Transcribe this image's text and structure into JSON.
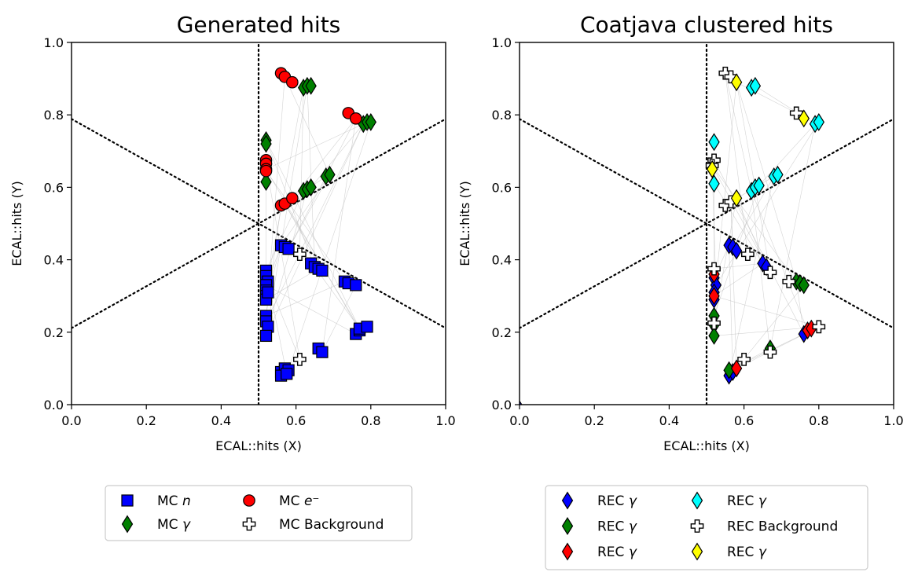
{
  "chart_data": [
    {
      "type": "scatter",
      "title": "Generated hits",
      "xlabel": "ECAL::hits (X)",
      "ylabel": "ECAL::hits (Y)",
      "xlim": [
        0,
        1
      ],
      "ylim": [
        0,
        1
      ],
      "xticks": [
        "0.0",
        "0.2",
        "0.4",
        "0.6",
        "0.8",
        "1.0"
      ],
      "yticks": [
        "0.0",
        "0.2",
        "0.4",
        "0.6",
        "0.8",
        "1.0"
      ],
      "grid": false,
      "legend": {
        "placement": "below",
        "columns": 2,
        "entries": [
          {
            "label": "MC n",
            "italic": "n",
            "prefix": "MC ",
            "marker": "square",
            "color": "#0000ff"
          },
          {
            "label": "MC γ",
            "italic": "γ",
            "prefix": "MC ",
            "marker": "diamond",
            "color": "#008000"
          },
          {
            "label": "MC e⁻",
            "italic": "e⁻",
            "prefix": "MC ",
            "marker": "circle",
            "color": "#ff0000"
          },
          {
            "label": "MC Background",
            "italic": "",
            "prefix": "MC Background",
            "marker": "plus",
            "color": "#ffffff"
          }
        ]
      },
      "series": [
        {
          "name": "MC n",
          "marker": "square",
          "color": "#0000ff",
          "points": [
            [
              0.56,
              0.44
            ],
            [
              0.57,
              0.435
            ],
            [
              0.58,
              0.43
            ],
            [
              0.52,
              0.37
            ],
            [
              0.52,
              0.355
            ],
            [
              0.525,
              0.34
            ],
            [
              0.52,
              0.33
            ],
            [
              0.52,
              0.315
            ],
            [
              0.52,
              0.3
            ],
            [
              0.52,
              0.29
            ],
            [
              0.525,
              0.31
            ],
            [
              0.64,
              0.39
            ],
            [
              0.65,
              0.38
            ],
            [
              0.66,
              0.375
            ],
            [
              0.67,
              0.37
            ],
            [
              0.73,
              0.34
            ],
            [
              0.74,
              0.335
            ],
            [
              0.76,
              0.33
            ],
            [
              0.52,
              0.245
            ],
            [
              0.52,
              0.23
            ],
            [
              0.525,
              0.215
            ],
            [
              0.52,
              0.19
            ],
            [
              0.76,
              0.195
            ],
            [
              0.77,
              0.205
            ],
            [
              0.77,
              0.21
            ],
            [
              0.79,
              0.215
            ],
            [
              0.66,
              0.155
            ],
            [
              0.67,
              0.145
            ],
            [
              0.56,
              0.09
            ],
            [
              0.57,
              0.1
            ],
            [
              0.58,
              0.095
            ],
            [
              0.56,
              0.08
            ],
            [
              0.575,
              0.085
            ]
          ]
        },
        {
          "name": "MC γ",
          "marker": "diamond",
          "color": "#008000",
          "points": [
            [
              0.62,
              0.875
            ],
            [
              0.63,
              0.88
            ],
            [
              0.64,
              0.88
            ],
            [
              0.78,
              0.775
            ],
            [
              0.79,
              0.78
            ],
            [
              0.8,
              0.78
            ],
            [
              0.52,
              0.73
            ],
            [
              0.52,
              0.72
            ],
            [
              0.68,
              0.63
            ],
            [
              0.69,
              0.635
            ],
            [
              0.52,
              0.615
            ],
            [
              0.62,
              0.59
            ],
            [
              0.63,
              0.595
            ],
            [
              0.64,
              0.6
            ]
          ]
        },
        {
          "name": "MC e⁻",
          "marker": "circle",
          "color": "#ff0000",
          "points": [
            [
              0.56,
              0.915
            ],
            [
              0.57,
              0.905
            ],
            [
              0.59,
              0.89
            ],
            [
              0.74,
              0.805
            ],
            [
              0.76,
              0.79
            ],
            [
              0.52,
              0.675
            ],
            [
              0.52,
              0.665
            ],
            [
              0.52,
              0.65
            ],
            [
              0.52,
              0.645
            ],
            [
              0.56,
              0.55
            ],
            [
              0.57,
              0.555
            ],
            [
              0.59,
              0.57
            ]
          ]
        },
        {
          "name": "MC Background",
          "marker": "plus",
          "color": "#ffffff",
          "points": [
            [
              0.61,
              0.415
            ],
            [
              0.61,
              0.125
            ]
          ]
        }
      ]
    },
    {
      "type": "scatter",
      "title": "Coatjava clustered hits",
      "xlabel": "ECAL::hits (X)",
      "ylabel": "ECAL::hits (Y)",
      "xlim": [
        0,
        1
      ],
      "ylim": [
        0,
        1
      ],
      "xticks": [
        "0.0",
        "0.2",
        "0.4",
        "0.6",
        "0.8",
        "1.0"
      ],
      "yticks": [
        "0.0",
        "0.2",
        "0.4",
        "0.6",
        "0.8",
        "1.0"
      ],
      "grid": false,
      "legend": {
        "placement": "below",
        "columns": 2,
        "entries": [
          {
            "label": "REC γ",
            "italic": "γ",
            "prefix": "REC ",
            "marker": "diamond",
            "color": "#0000ff"
          },
          {
            "label": "REC γ",
            "italic": "γ",
            "prefix": "REC ",
            "marker": "diamond",
            "color": "#008000"
          },
          {
            "label": "REC γ",
            "italic": "γ",
            "prefix": "REC ",
            "marker": "diamond",
            "color": "#ff0000"
          },
          {
            "label": "REC γ",
            "italic": "γ",
            "prefix": "REC ",
            "marker": "diamond",
            "color": "#00ffff"
          },
          {
            "label": "REC Background",
            "italic": "",
            "prefix": "REC Background",
            "marker": "plus",
            "color": "#ffffff"
          },
          {
            "label": "REC γ",
            "italic": "γ",
            "prefix": "REC ",
            "marker": "diamond",
            "color": "#ffff00"
          }
        ]
      },
      "series": [
        {
          "name": "REC γ (blue)",
          "marker": "diamond",
          "color": "#0000ff",
          "points": [
            [
              0.56,
              0.44
            ],
            [
              0.57,
              0.435
            ],
            [
              0.58,
              0.425
            ],
            [
              0.65,
              0.39
            ],
            [
              0.66,
              0.38
            ],
            [
              0.52,
              0.35
            ],
            [
              0.525,
              0.33
            ],
            [
              0.52,
              0.31
            ],
            [
              0.52,
              0.29
            ],
            [
              0.76,
              0.195
            ],
            [
              0.56,
              0.08
            ],
            [
              0.57,
              0.09
            ]
          ]
        },
        {
          "name": "REC γ (green)",
          "marker": "diamond",
          "color": "#008000",
          "points": [
            [
              0.74,
              0.34
            ],
            [
              0.75,
              0.335
            ],
            [
              0.76,
              0.33
            ],
            [
              0.52,
              0.245
            ],
            [
              0.52,
              0.22
            ],
            [
              0.52,
              0.19
            ],
            [
              0.67,
              0.155
            ],
            [
              0.56,
              0.095
            ]
          ]
        },
        {
          "name": "REC γ (red)",
          "marker": "diamond",
          "color": "#ff0000",
          "points": [
            [
              0.52,
              0.36
            ],
            [
              0.52,
              0.3
            ],
            [
              0.77,
              0.205
            ],
            [
              0.78,
              0.21
            ],
            [
              0.58,
              0.1
            ]
          ]
        },
        {
          "name": "REC γ (cyan)",
          "marker": "diamond",
          "color": "#00ffff",
          "points": [
            [
              0.62,
              0.875
            ],
            [
              0.63,
              0.88
            ],
            [
              0.79,
              0.775
            ],
            [
              0.8,
              0.78
            ],
            [
              0.52,
              0.725
            ],
            [
              0.68,
              0.63
            ],
            [
              0.69,
              0.635
            ],
            [
              0.52,
              0.61
            ],
            [
              0.62,
              0.59
            ],
            [
              0.63,
              0.6
            ],
            [
              0.64,
              0.605
            ]
          ]
        },
        {
          "name": "REC Background",
          "marker": "plus",
          "color": "#ffffff",
          "points": [
            [
              0.55,
              0.915
            ],
            [
              0.565,
              0.905
            ],
            [
              0.74,
              0.805
            ],
            [
              0.52,
              0.675
            ],
            [
              0.515,
              0.66
            ],
            [
              0.55,
              0.55
            ],
            [
              0.565,
              0.56
            ],
            [
              0.61,
              0.415
            ],
            [
              0.52,
              0.375
            ],
            [
              0.67,
              0.365
            ],
            [
              0.72,
              0.34
            ],
            [
              0.52,
              0.225
            ],
            [
              0.8,
              0.215
            ],
            [
              0.67,
              0.145
            ],
            [
              0.6,
              0.125
            ]
          ]
        },
        {
          "name": "REC γ (yellow)",
          "marker": "diamond",
          "color": "#ffff00",
          "points": [
            [
              0.58,
              0.89
            ],
            [
              0.76,
              0.79
            ],
            [
              0.515,
              0.65
            ],
            [
              0.58,
              0.57
            ]
          ]
        }
      ]
    }
  ]
}
